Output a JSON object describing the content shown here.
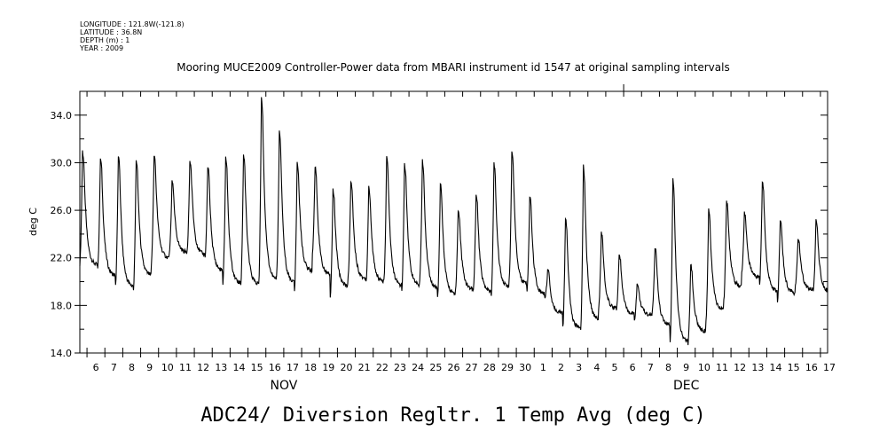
{
  "metadata": {
    "longitude": "LONGITUDE : 121.8W(-121.8)",
    "latitude": "LATITUDE : 36.8N",
    "depth": "DEPTH (m) : 1",
    "year": "YEAR : 2009"
  },
  "chart_data": {
    "type": "line",
    "title": "Mooring MUCE2009 Controller-Power data from MBARI instrument id 1547 at original sampling intervals",
    "ylabel": "deg C",
    "xlabel": "ADC24/ Diversion Regltr. 1 Temp Avg (deg C)",
    "ylim": [
      14.0,
      36.0
    ],
    "y_ticks": [
      "14.0",
      "18.0",
      "22.0",
      "26.0",
      "30.0",
      "34.0"
    ],
    "y_tick_values": [
      14,
      18,
      22,
      26,
      30,
      34
    ],
    "x_range_days": [
      5.6,
      47.4
    ],
    "x_ticks": [
      "6",
      "7",
      "8",
      "9",
      "10",
      "11",
      "12",
      "13",
      "14",
      "15",
      "16",
      "17",
      "18",
      "19",
      "20",
      "21",
      "22",
      "23",
      "24",
      "25",
      "26",
      "27",
      "28",
      "29",
      "30",
      "1",
      "2",
      "3",
      "4",
      "5",
      "6",
      "7",
      "8",
      "9",
      "10",
      "11",
      "12",
      "13",
      "14",
      "15",
      "16",
      "17"
    ],
    "month_labels": [
      {
        "label": "NOV",
        "day": 17
      },
      {
        "label": "DEC",
        "day": 39.5
      }
    ],
    "series": [
      {
        "daily_min": [
          21.5,
          21.2,
          19.7,
          19.4,
          21.6,
          22.3,
          22.6,
          21.9,
          19.9,
          19.8,
          19.7,
          20.5,
          19.3,
          22.4,
          18.7,
          20.5,
          19.9,
          20.1,
          19.1,
          20.2,
          18.6,
          19.3,
          19.4,
          18.8,
          20.2,
          19.2,
          18.6,
          16.1,
          15.9,
          17.7,
          17.7,
          16.8,
          17.6,
          15.0,
          14.8,
          16.8,
          18.4,
          20.7,
          19.9,
          18.4,
          19.6,
          19.1
        ],
        "daily_max": [
          31.0,
          30.4,
          30.6,
          30.3,
          30.7,
          28.4,
          30.2,
          29.7,
          30.5,
          30.7,
          35.6,
          32.6,
          30.1,
          29.7,
          27.8,
          28.5,
          27.9,
          30.5,
          30.0,
          30.2,
          28.3,
          26.0,
          27.4,
          30.0,
          31.1,
          27.2,
          21.0,
          25.3,
          29.7,
          24.1,
          22.3,
          19.8,
          22.9,
          28.6,
          21.5,
          26.0,
          26.8,
          25.8,
          28.5,
          25.3,
          23.6,
          25.3
        ]
      }
    ]
  },
  "caption": "ADC24/ Diversion Regltr. 1 Temp Avg (deg C)"
}
